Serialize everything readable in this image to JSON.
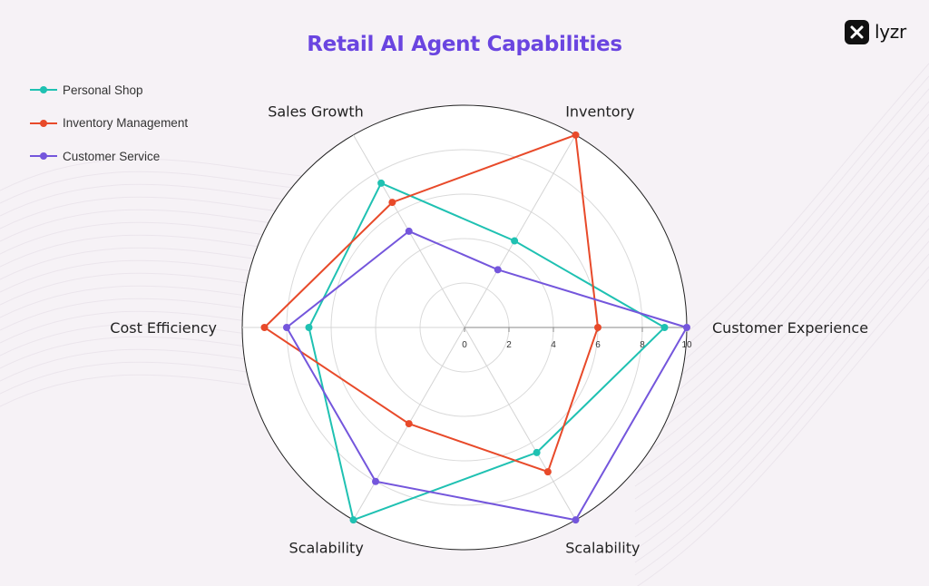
{
  "brand": {
    "logo_text": "lyzr"
  },
  "chart_data": {
    "type": "radar",
    "title": "Retail AI Agent Capabilities",
    "axes": [
      "Customer Experience",
      "Inventory",
      "Sales Growth",
      "Cost Efficiency",
      "Scalability",
      "Scalability"
    ],
    "r_ticks": [
      "0",
      "2",
      "4",
      "6",
      "8",
      "10"
    ],
    "r_range": [
      0,
      10
    ],
    "grid": true,
    "legend_position": "top-left",
    "series": [
      {
        "name": "Personal Shop",
        "color": "#1fc1b2",
        "values": [
          9,
          4.5,
          7.5,
          7,
          10,
          6.5
        ]
      },
      {
        "name": "Inventory Management",
        "color": "#e84a2a",
        "values": [
          6,
          10,
          6.5,
          9,
          5,
          7.5
        ]
      },
      {
        "name": "Customer Service",
        "color": "#7456dc",
        "values": [
          10,
          3,
          5,
          8,
          8,
          10
        ]
      }
    ]
  }
}
